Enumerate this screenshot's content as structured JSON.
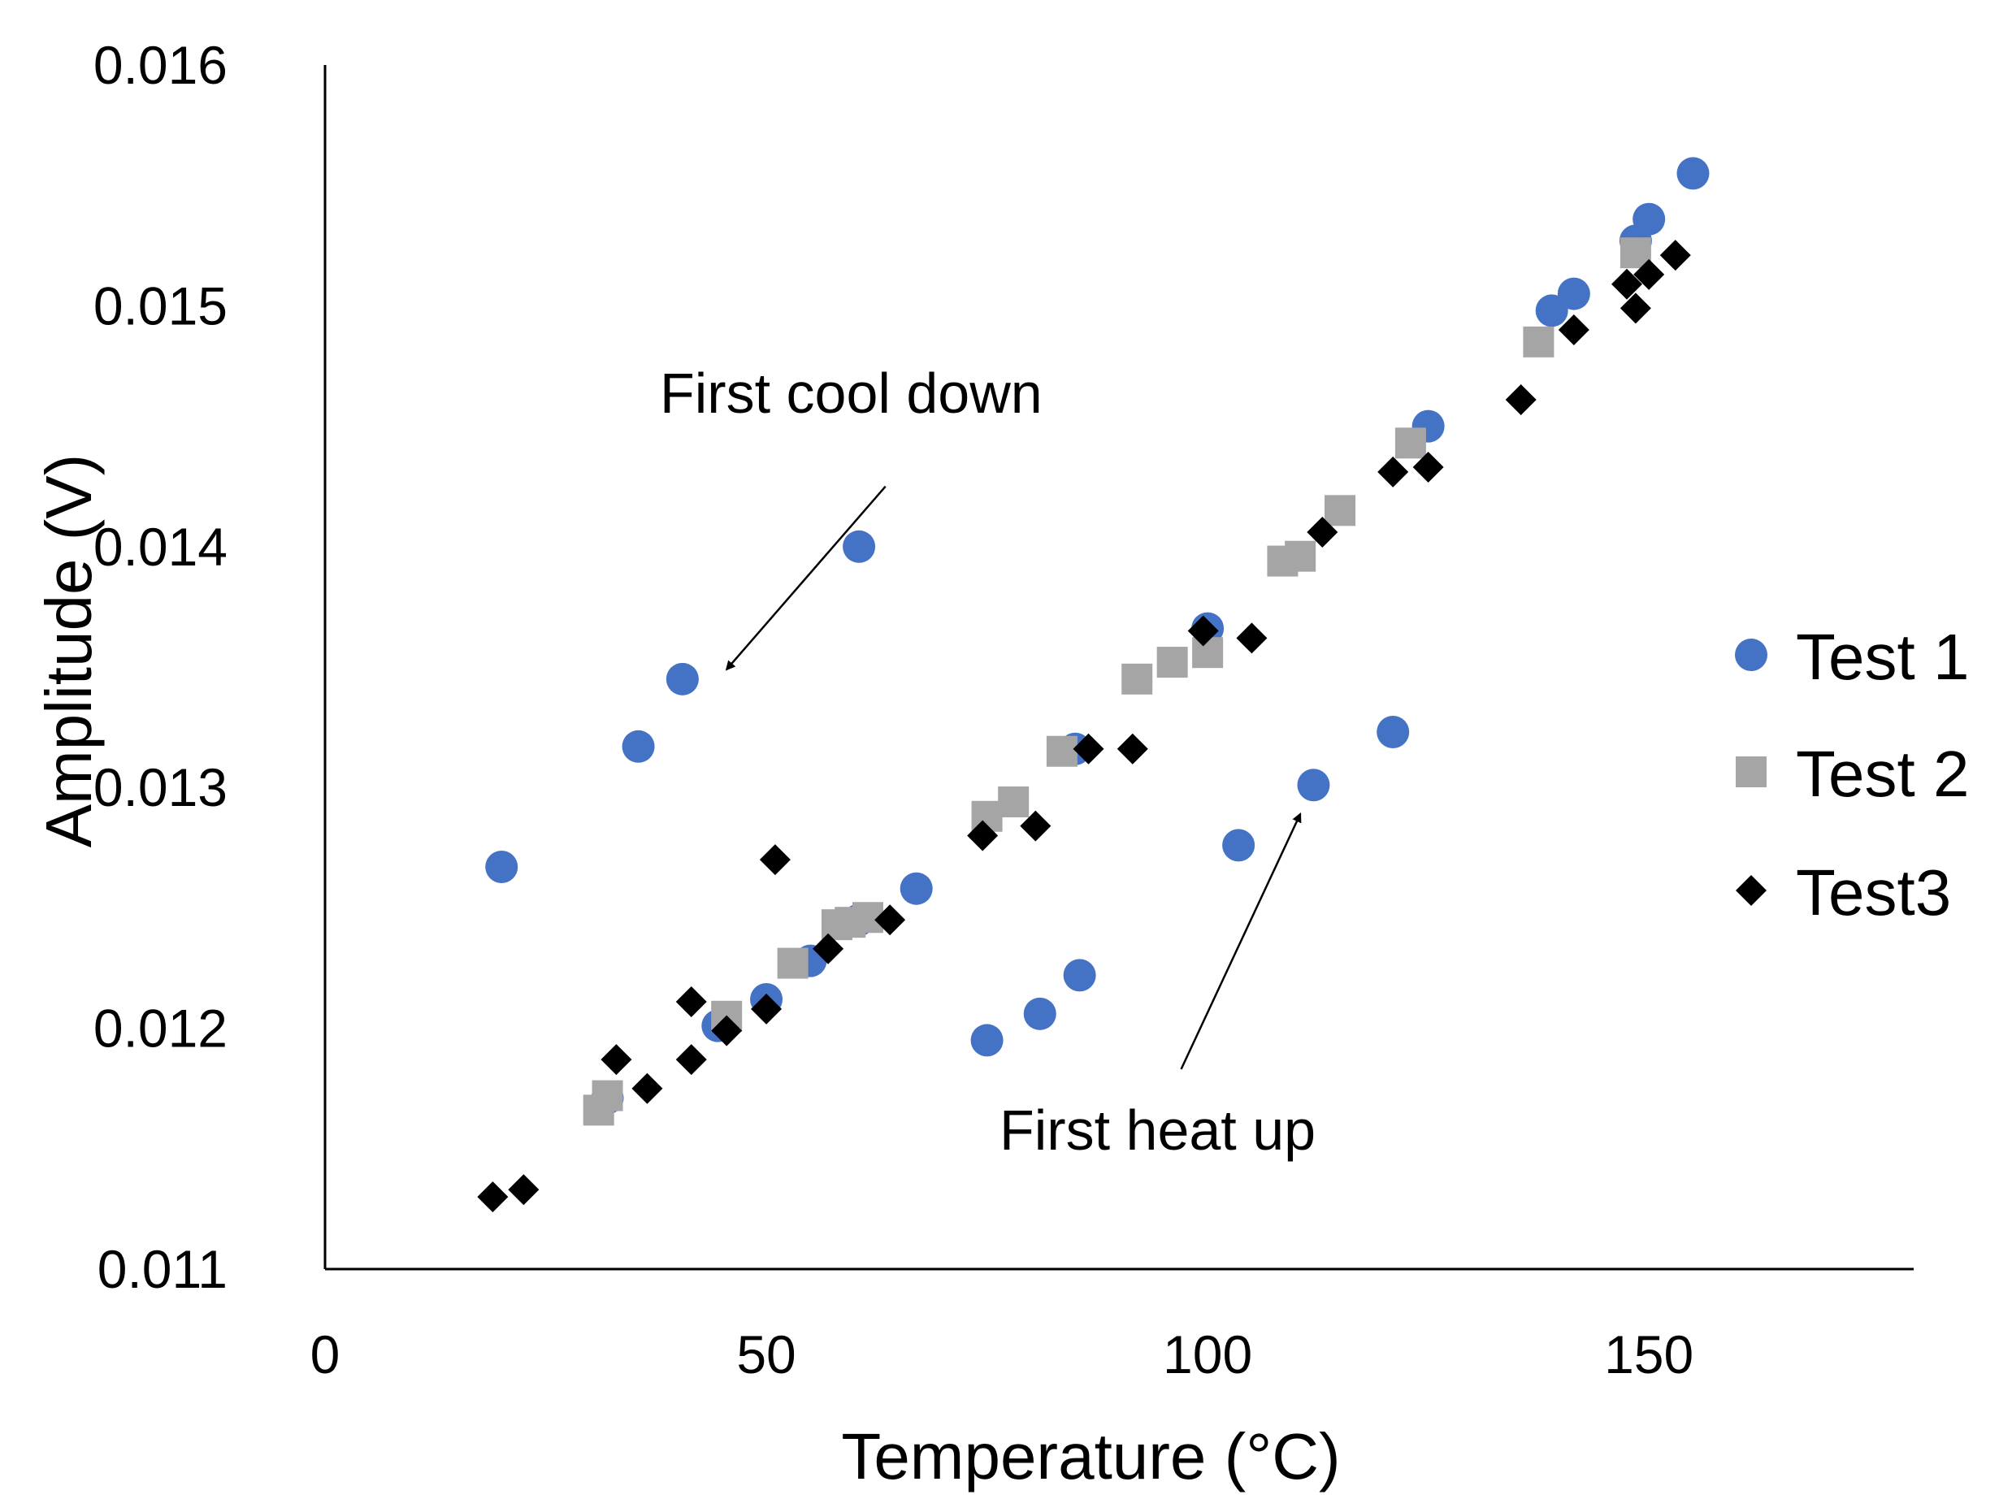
{
  "chart_data": {
    "type": "scatter",
    "title": "",
    "xlabel": "Temperature (°C)",
    "ylabel": "Amplitude (V)",
    "xlim": [
      0,
      180
    ],
    "ylim": [
      0.011,
      0.016
    ],
    "x_ticks": [
      "0",
      "50",
      "100",
      "150"
    ],
    "x_tick_values": [
      0,
      50,
      100,
      150
    ],
    "y_ticks": [
      "0.011",
      "0.012",
      "0.013",
      "0.014",
      "0.015",
      "0.016"
    ],
    "y_tick_values": [
      0.011,
      0.012,
      0.013,
      0.014,
      0.015,
      0.016
    ],
    "grid": false,
    "legend_position": "right",
    "series": [
      {
        "name": "Test 1",
        "marker": "circle",
        "color": "#4472c4",
        "points": [
          {
            "x": 20,
            "y": 0.01267
          },
          {
            "x": 35.5,
            "y": 0.01317
          },
          {
            "x": 40.5,
            "y": 0.01345
          },
          {
            "x": 60.5,
            "y": 0.014
          },
          {
            "x": 32,
            "y": 0.01171
          },
          {
            "x": 44.5,
            "y": 0.01201
          },
          {
            "x": 50,
            "y": 0.01212
          },
          {
            "x": 55,
            "y": 0.01228
          },
          {
            "x": 60.5,
            "y": 0.01245
          },
          {
            "x": 67,
            "y": 0.01258
          },
          {
            "x": 75,
            "y": 0.01195
          },
          {
            "x": 81,
            "y": 0.01206
          },
          {
            "x": 85.5,
            "y": 0.01222
          },
          {
            "x": 85,
            "y": 0.01316
          },
          {
            "x": 100,
            "y": 0.01366
          },
          {
            "x": 103.5,
            "y": 0.01276
          },
          {
            "x": 112,
            "y": 0.01301
          },
          {
            "x": 121,
            "y": 0.01323
          },
          {
            "x": 125,
            "y": 0.0145
          },
          {
            "x": 139,
            "y": 0.01498
          },
          {
            "x": 141.5,
            "y": 0.01505
          },
          {
            "x": 148.5,
            "y": 0.01527
          },
          {
            "x": 150,
            "y": 0.01536
          },
          {
            "x": 155,
            "y": 0.01555
          }
        ]
      },
      {
        "name": "Test 2",
        "marker": "square",
        "color": "#a5a5a5",
        "points": [
          {
            "x": 31,
            "y": 0.01166
          },
          {
            "x": 32,
            "y": 0.01172
          },
          {
            "x": 45.5,
            "y": 0.01205
          },
          {
            "x": 53,
            "y": 0.01227
          },
          {
            "x": 58,
            "y": 0.01243
          },
          {
            "x": 59.5,
            "y": 0.01244
          },
          {
            "x": 61.5,
            "y": 0.01246
          },
          {
            "x": 75,
            "y": 0.01288
          },
          {
            "x": 78,
            "y": 0.01294
          },
          {
            "x": 83.5,
            "y": 0.01315
          },
          {
            "x": 92,
            "y": 0.01345
          },
          {
            "x": 96,
            "y": 0.01352
          },
          {
            "x": 100,
            "y": 0.01356
          },
          {
            "x": 108.5,
            "y": 0.01394
          },
          {
            "x": 110.5,
            "y": 0.01396
          },
          {
            "x": 115,
            "y": 0.01415
          },
          {
            "x": 123,
            "y": 0.01443
          },
          {
            "x": 137.5,
            "y": 0.01485
          },
          {
            "x": 148.5,
            "y": 0.01522
          }
        ]
      },
      {
        "name": "Test3",
        "marker": "diamond",
        "color": "#000000",
        "points": [
          {
            "x": 19,
            "y": 0.0113
          },
          {
            "x": 22.5,
            "y": 0.01133
          },
          {
            "x": 33,
            "y": 0.01187
          },
          {
            "x": 36.5,
            "y": 0.01175
          },
          {
            "x": 41.5,
            "y": 0.01211
          },
          {
            "x": 41.5,
            "y": 0.01187
          },
          {
            "x": 45.5,
            "y": 0.01199
          },
          {
            "x": 50,
            "y": 0.01208
          },
          {
            "x": 51,
            "y": 0.0127
          },
          {
            "x": 57,
            "y": 0.01233
          },
          {
            "x": 64,
            "y": 0.01245
          },
          {
            "x": 74.5,
            "y": 0.0128
          },
          {
            "x": 80.5,
            "y": 0.01284
          },
          {
            "x": 86.5,
            "y": 0.01316
          },
          {
            "x": 91.5,
            "y": 0.01316
          },
          {
            "x": 99.5,
            "y": 0.01365
          },
          {
            "x": 105,
            "y": 0.01362
          },
          {
            "x": 113,
            "y": 0.01406
          },
          {
            "x": 121,
            "y": 0.01431
          },
          {
            "x": 125,
            "y": 0.01433
          },
          {
            "x": 135.5,
            "y": 0.01461
          },
          {
            "x": 141.5,
            "y": 0.0149
          },
          {
            "x": 147.5,
            "y": 0.01509
          },
          {
            "x": 148.5,
            "y": 0.01499
          },
          {
            "x": 150,
            "y": 0.01513
          },
          {
            "x": 153,
            "y": 0.01521
          }
        ]
      }
    ],
    "annotations": [
      {
        "text": "First cool down",
        "arrow_from": {
          "x": 63.5,
          "y": 0.01425
        },
        "arrow_to": {
          "x": 45.5,
          "y": 0.01349
        }
      },
      {
        "text": "First heat up",
        "arrow_from": {
          "x": 97,
          "y": 0.01183
        },
        "arrow_to": {
          "x": 110.5,
          "y": 0.01289
        }
      }
    ]
  }
}
